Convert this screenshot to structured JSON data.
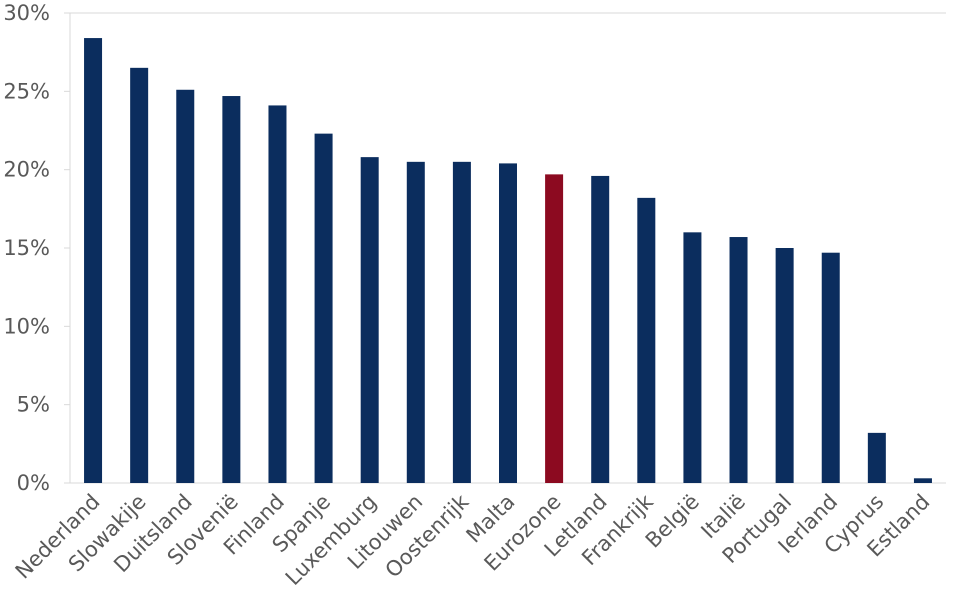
{
  "chart_data": {
    "type": "bar",
    "title": "",
    "xlabel": "",
    "ylabel": "",
    "ylim": [
      0,
      30
    ],
    "y_ticks": [
      "0%",
      "5%",
      "10%",
      "15%",
      "20%",
      "25%",
      "30%"
    ],
    "y_tick_values": [
      0,
      5,
      10,
      15,
      20,
      25,
      30
    ],
    "grid": "horizontal-top-only",
    "legend": "none",
    "categories": [
      "Nederland",
      "Slowakije",
      "Duitsland",
      "Slovenië",
      "Finland",
      "Spanje",
      "Luxemburg",
      "Litouwen",
      "Oostenrijk",
      "Malta",
      "Eurozone",
      "Letland",
      "Frankrijk",
      "België",
      "Italië",
      "Portugal",
      "Ierland",
      "Cyprus",
      "Estland"
    ],
    "values": [
      28.4,
      26.5,
      25.1,
      24.7,
      24.1,
      22.3,
      20.8,
      20.5,
      20.5,
      20.4,
      19.7,
      19.6,
      18.2,
      16.0,
      15.7,
      15.0,
      14.7,
      3.2,
      0.3
    ],
    "colors": {
      "default": "#0b2d5e",
      "highlight": "#8c0a20",
      "axis": "#d9d9d9",
      "text": "#595959"
    },
    "highlight_category": "Eurozone"
  }
}
